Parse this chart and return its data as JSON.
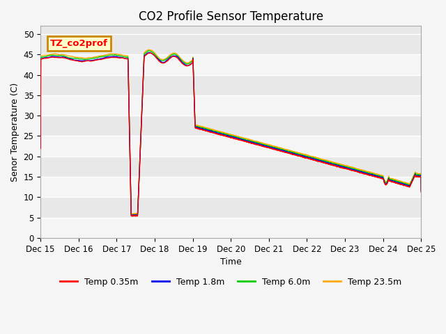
{
  "title": "CO2 Profile Sensor Temperature",
  "ylabel": "Senor Temperature (C)",
  "xlabel": "Time",
  "annotation_text": "TZ_co2prof",
  "annotation_bg": "#ffffcc",
  "annotation_border": "#cc8800",
  "plot_bg": "#e8e8e8",
  "ylim": [
    0,
    52
  ],
  "yticks": [
    0,
    5,
    10,
    15,
    20,
    25,
    30,
    35,
    40,
    45,
    50
  ],
  "legend_entries": [
    "Temp 0.35m",
    "Temp 1.8m",
    "Temp 6.0m",
    "Temp 23.5m"
  ],
  "line_colors": [
    "#ff0000",
    "#0000ee",
    "#00cc00",
    "#ffaa00"
  ],
  "title_fontsize": 12,
  "axis_fontsize": 9,
  "tick_fontsize": 8.5
}
